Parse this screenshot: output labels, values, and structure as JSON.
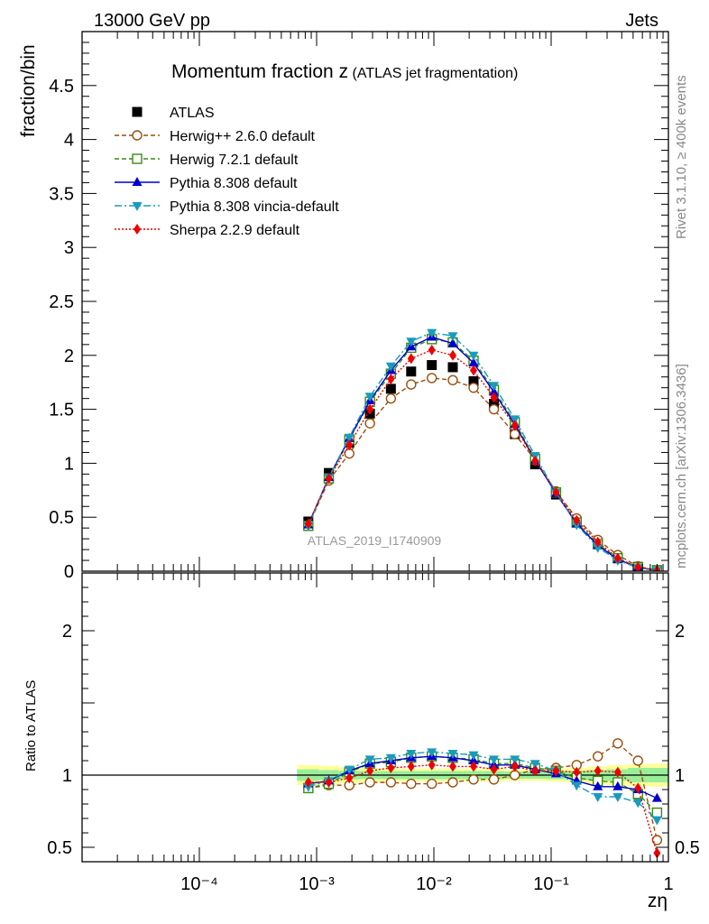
{
  "header": {
    "energy_label": "13000 GeV pp",
    "process_label": "Jets",
    "rivet_label": "Rivet 3.1.10, ≥ 400k events",
    "source_label": "mcplots.cern.ch [arXiv:1306.3436]",
    "analysis_id": "ATLAS_2019_I1740909"
  },
  "title": {
    "main": "Momentum fraction z",
    "sub": "(ATLAS jet fragmentation)"
  },
  "axes": {
    "xlabel": "zη",
    "ylabel_main": "fraction/bin",
    "ylabel_ratio": "Ratio to ATLAS",
    "x_tick_labels": [
      "10⁻⁴",
      "10⁻³",
      "10⁻²",
      "10⁻¹",
      "1"
    ],
    "y_tick_labels_main": [
      "0",
      "0.5",
      "1",
      "1.5",
      "2",
      "2.5",
      "3",
      "3.5",
      "4",
      "4.5"
    ],
    "y_tick_labels_ratio": [
      "0.5",
      "1",
      "2"
    ]
  },
  "colors": {
    "atlas": "#000000",
    "herwig_pp": "#9a4f0c",
    "herwig7": "#3a8a12",
    "pythia": "#0000cc",
    "vincia": "#1a9bbd",
    "sherpa": "#ee0000",
    "band_inner": "#99ee99",
    "band_outer": "#ffff99"
  },
  "chart_data": [
    {
      "type": "scatter",
      "panel": "main",
      "title": "Momentum fraction z (ATLAS jet fragmentation)",
      "xlabel": "zη",
      "ylabel": "fraction/bin",
      "xscale": "log",
      "xlim": [
        1e-05,
        1
      ],
      "ylim": [
        0,
        5
      ],
      "legend_position": "top-left",
      "x": [
        0.00085,
        0.00127,
        0.0019,
        0.00285,
        0.0043,
        0.0064,
        0.0096,
        0.0145,
        0.0218,
        0.0325,
        0.049,
        0.073,
        0.11,
        0.165,
        0.25,
        0.37,
        0.55,
        0.8
      ],
      "series": [
        {
          "name": "ATLAS",
          "key": "atlas",
          "marker": "square",
          "dash": "none",
          "values": [
            0.46,
            0.91,
            1.19,
            1.46,
            1.69,
            1.85,
            1.91,
            1.89,
            1.76,
            1.55,
            1.27,
            0.99,
            0.71,
            0.46,
            0.26,
            0.12,
            0.04,
            0.01
          ]
        },
        {
          "name": "Herwig++ 2.6.0 default",
          "key": "herwig_pp",
          "marker": "circle-open",
          "dash": "5,3",
          "values": [
            0.42,
            0.84,
            1.09,
            1.37,
            1.6,
            1.73,
            1.79,
            1.77,
            1.7,
            1.5,
            1.27,
            1.03,
            0.74,
            0.49,
            0.29,
            0.15,
            0.045,
            0.006
          ]
        },
        {
          "name": "Herwig 7.2.1 default",
          "key": "herwig7",
          "marker": "square-open",
          "dash": "5,3",
          "values": [
            0.42,
            0.86,
            1.22,
            1.57,
            1.83,
            2.07,
            2.15,
            2.12,
            1.95,
            1.68,
            1.38,
            1.04,
            0.73,
            0.45,
            0.25,
            0.12,
            0.035,
            0.007
          ]
        },
        {
          "name": "Pythia 8.308 default",
          "key": "pythia",
          "marker": "triangle-up",
          "dash": "none",
          "values": [
            0.43,
            0.87,
            1.23,
            1.58,
            1.86,
            2.08,
            2.17,
            2.11,
            1.93,
            1.66,
            1.36,
            1.03,
            0.72,
            0.44,
            0.24,
            0.11,
            0.035,
            0.0085
          ]
        },
        {
          "name": "Pythia 8.308 vincia-default",
          "key": "vincia",
          "marker": "triangle-down",
          "dash": "8,3,2,3",
          "values": [
            0.42,
            0.87,
            1.24,
            1.62,
            1.9,
            2.13,
            2.21,
            2.18,
            2.0,
            1.72,
            1.41,
            1.07,
            0.73,
            0.43,
            0.22,
            0.1,
            0.032,
            0.007
          ]
        },
        {
          "name": "Sherpa 2.2.9 default",
          "key": "sherpa",
          "marker": "diamond",
          "dash": "2,2",
          "values": [
            0.44,
            0.86,
            1.17,
            1.5,
            1.78,
            1.97,
            2.05,
            2.0,
            1.86,
            1.61,
            1.35,
            1.02,
            0.73,
            0.47,
            0.27,
            0.12,
            0.036,
            0.0046
          ]
        }
      ]
    },
    {
      "type": "line",
      "panel": "ratio",
      "xlabel": "zη",
      "ylabel": "Ratio to ATLAS",
      "xscale": "log",
      "xlim": [
        1e-05,
        1
      ],
      "ylim": [
        0.4,
        2.4
      ],
      "x": [
        0.00085,
        0.00127,
        0.0019,
        0.00285,
        0.0043,
        0.0064,
        0.0096,
        0.0145,
        0.0218,
        0.0325,
        0.049,
        0.073,
        0.11,
        0.165,
        0.25,
        0.37,
        0.55,
        0.8
      ],
      "uncertainty_band": {
        "x_edges": [
          0.00068,
          0.00104,
          0.00155,
          0.0023,
          0.0035,
          0.0052,
          0.0078,
          0.0117,
          0.0176,
          0.0264,
          0.04,
          0.06,
          0.09,
          0.135,
          0.2,
          0.3,
          0.45,
          0.67,
          1.0
        ],
        "inner_half_width": [
          0.04,
          0.035,
          0.03,
          0.028,
          0.028,
          0.028,
          0.028,
          0.028,
          0.028,
          0.028,
          0.025,
          0.025,
          0.028,
          0.03,
          0.035,
          0.04,
          0.05,
          0.05
        ],
        "outer_half_width": [
          0.07,
          0.065,
          0.055,
          0.05,
          0.045,
          0.045,
          0.045,
          0.045,
          0.045,
          0.045,
          0.04,
          0.04,
          0.045,
          0.05,
          0.06,
          0.07,
          0.075,
          0.08
        ]
      },
      "series": [
        {
          "name": "Herwig++ 2.6.0 default",
          "key": "herwig_pp",
          "marker": "circle-open",
          "dash": "5,3",
          "values": [
            0.91,
            0.93,
            0.93,
            0.95,
            0.95,
            0.94,
            0.94,
            0.95,
            0.97,
            0.97,
            1.0,
            1.04,
            1.05,
            1.07,
            1.13,
            1.22,
            1.1,
            0.55
          ]
        },
        {
          "name": "Herwig 7.2.1 default",
          "key": "herwig7",
          "marker": "square-open",
          "dash": "5,3",
          "values": [
            0.91,
            0.94,
            1.02,
            1.08,
            1.09,
            1.12,
            1.13,
            1.12,
            1.11,
            1.08,
            1.08,
            1.05,
            1.03,
            0.98,
            0.96,
            0.95,
            0.87,
            0.74
          ]
        },
        {
          "name": "Pythia 8.308 default",
          "key": "pythia",
          "marker": "triangle-up",
          "dash": "none",
          "values": [
            0.94,
            0.96,
            1.03,
            1.08,
            1.1,
            1.12,
            1.13,
            1.12,
            1.1,
            1.07,
            1.07,
            1.04,
            1.01,
            0.96,
            0.92,
            0.92,
            0.9,
            0.84
          ]
        },
        {
          "name": "Pythia 8.308 vincia-default",
          "key": "vincia",
          "marker": "triangle-down",
          "dash": "8,3,2,3",
          "values": [
            0.92,
            0.96,
            1.04,
            1.11,
            1.12,
            1.15,
            1.16,
            1.15,
            1.14,
            1.11,
            1.11,
            1.08,
            1.03,
            0.93,
            0.85,
            0.85,
            0.81,
            0.69
          ]
        },
        {
          "name": "Sherpa 2.2.9 default",
          "key": "sherpa",
          "marker": "diamond",
          "dash": "2,2",
          "values": [
            0.95,
            0.95,
            0.98,
            1.03,
            1.05,
            1.06,
            1.07,
            1.06,
            1.06,
            1.04,
            1.06,
            1.03,
            1.03,
            1.02,
            1.03,
            1.02,
            0.91,
            0.46
          ]
        }
      ]
    }
  ]
}
